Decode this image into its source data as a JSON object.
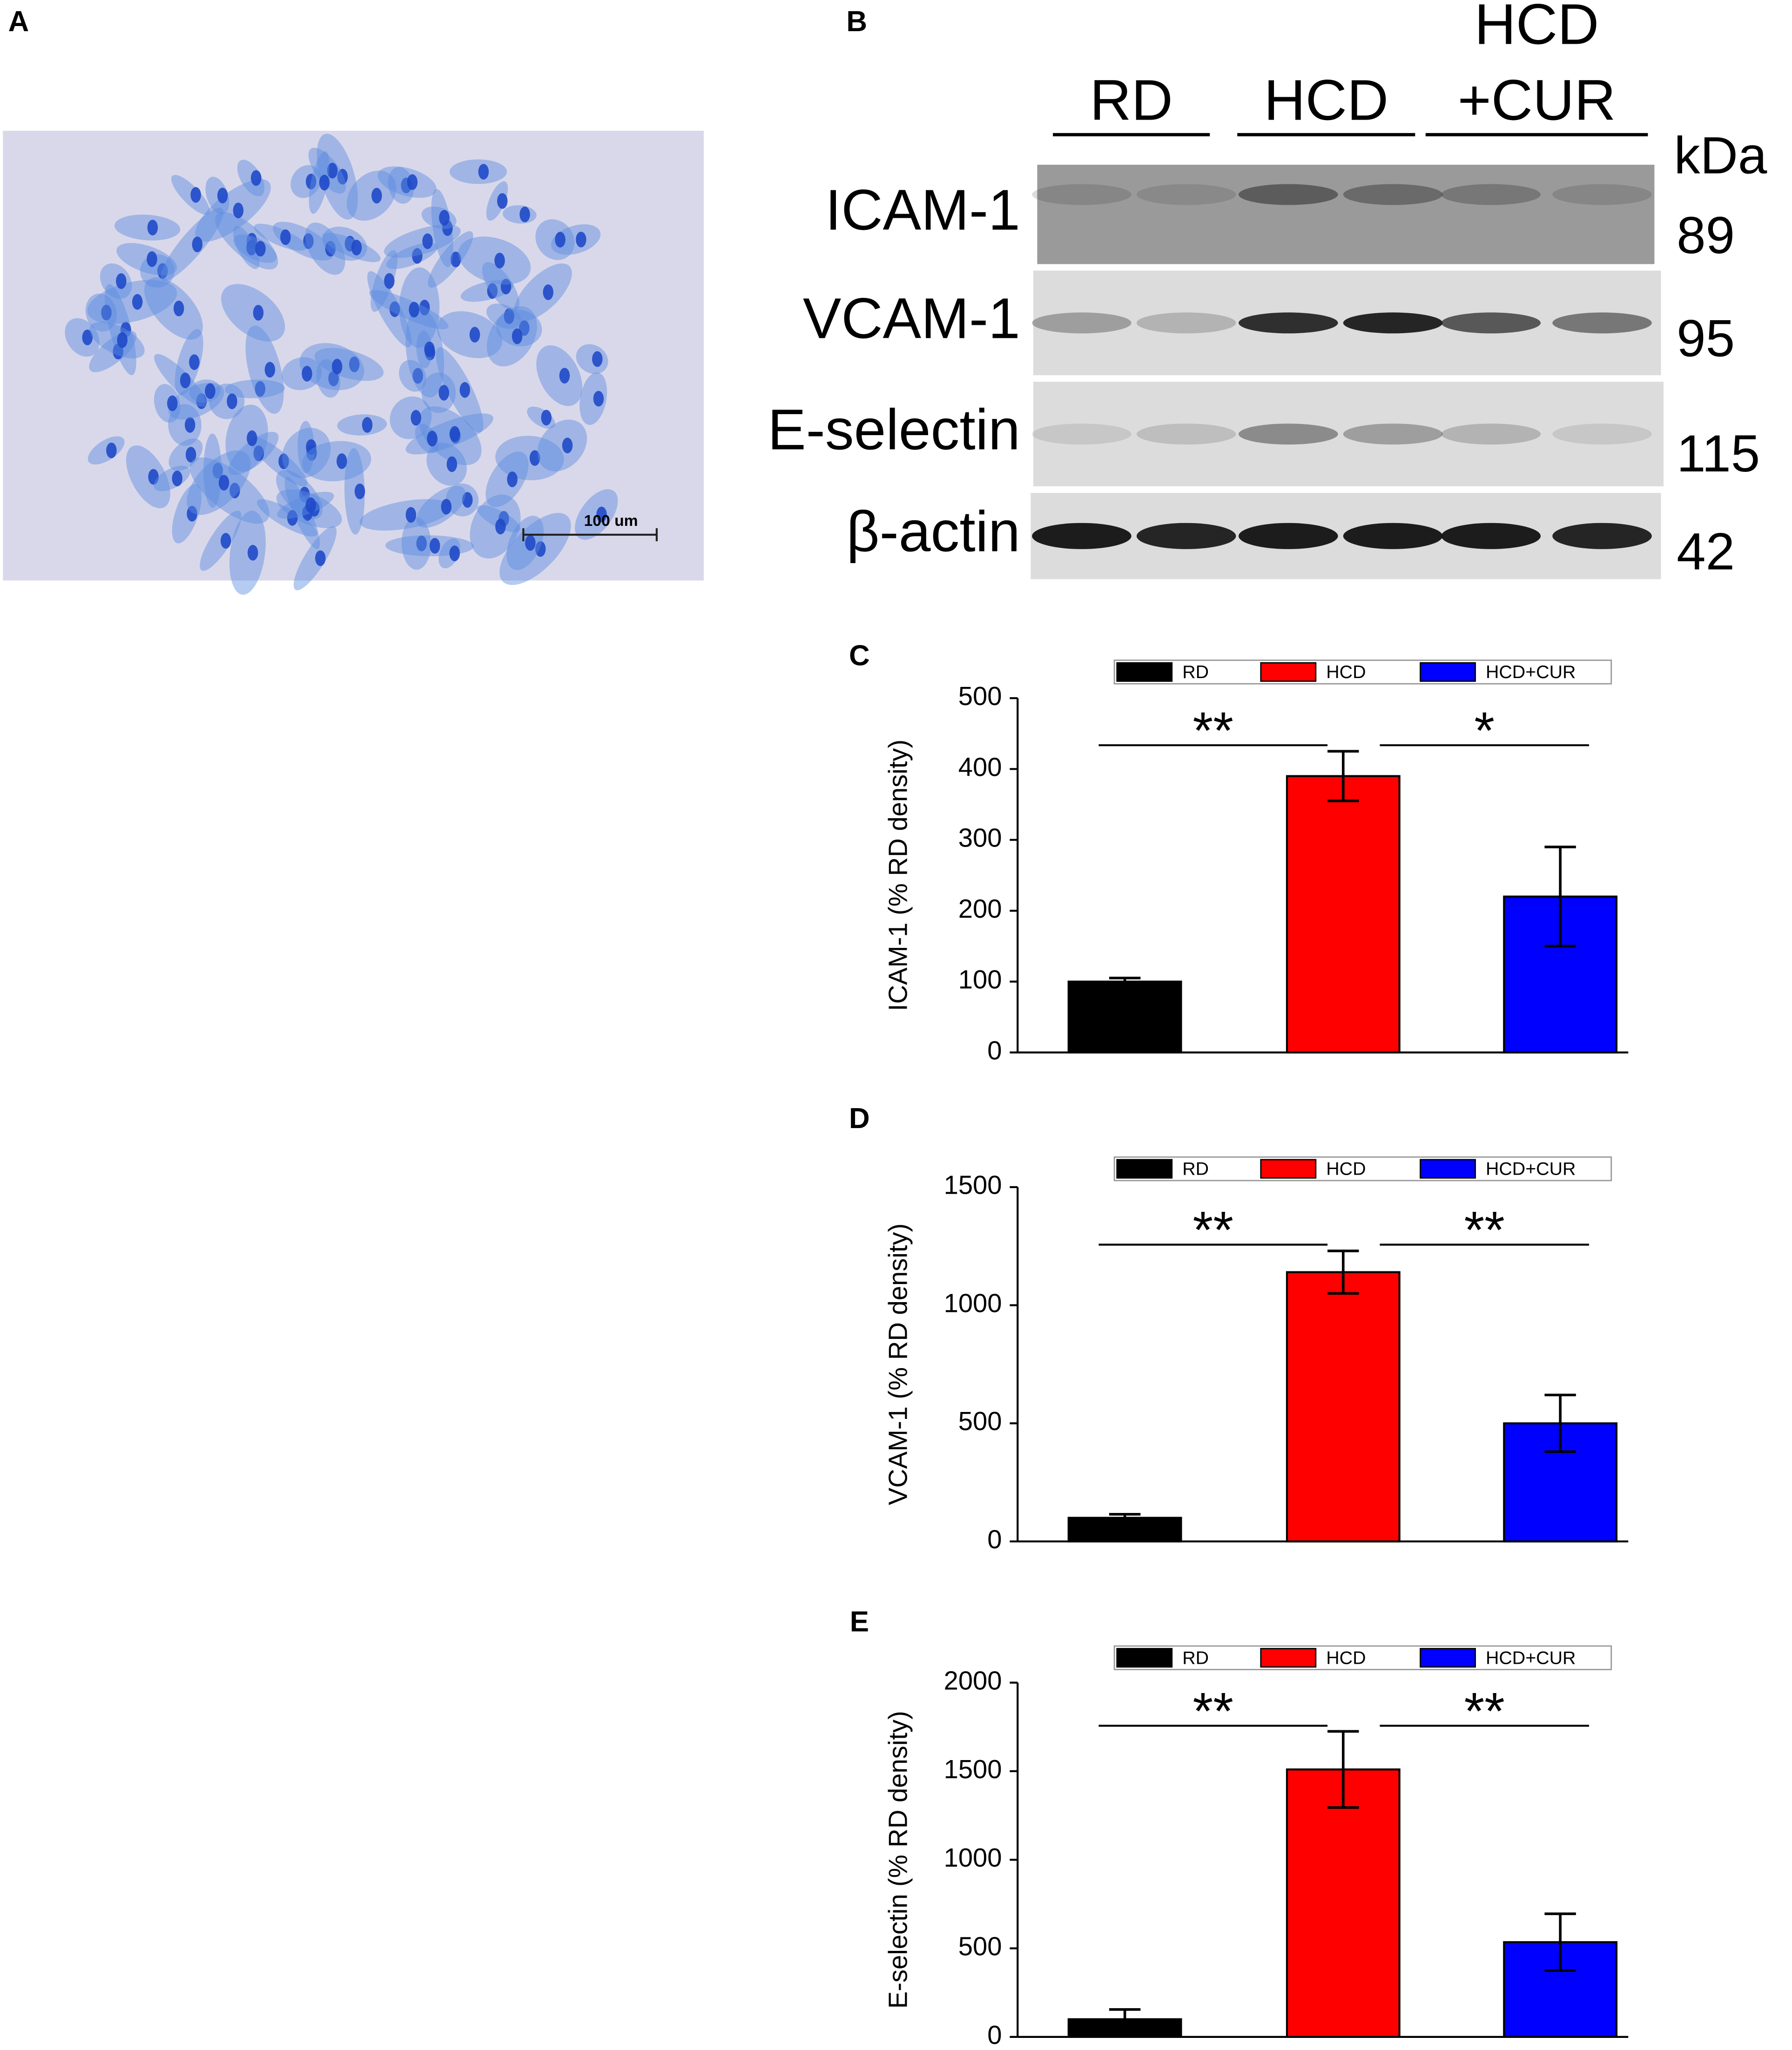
{
  "panel_a": {
    "label": "A",
    "scale_bar": "100 um"
  },
  "panel_b": {
    "label": "B",
    "groups": [
      [
        "RD"
      ],
      [
        "HCD"
      ],
      [
        "HCD",
        "+CUR"
      ]
    ],
    "unit": "kDa",
    "proteins": [
      "ICAM-1",
      "VCAM-1",
      "E-selectin",
      "β-actin"
    ],
    "sizes": [
      89,
      95,
      115,
      42
    ]
  },
  "chart_data": [
    {
      "type": "bar",
      "panel": "C",
      "ylabel": "ICAM-1 (% RD density)",
      "series": [
        {
          "name": "RD",
          "color": "#000000",
          "values": [
            100
          ],
          "errors": [
            5
          ]
        },
        {
          "name": "HCD",
          "color": "#ff0000",
          "values": [
            390
          ],
          "errors": [
            35
          ]
        },
        {
          "name": "HCD+CUR",
          "color": "#0000ff",
          "values": [
            220
          ],
          "errors": [
            70
          ]
        }
      ],
      "ylim": [
        0,
        500
      ],
      "yticks": [
        0,
        100,
        200,
        300,
        400,
        500
      ],
      "significance": [
        "**",
        "*"
      ]
    },
    {
      "type": "bar",
      "panel": "D",
      "ylabel": "VCAM-1 (% RD density)",
      "series": [
        {
          "name": "RD",
          "color": "#000000",
          "values": [
            100
          ],
          "errors": [
            15
          ]
        },
        {
          "name": "HCD",
          "color": "#ff0000",
          "values": [
            1140
          ],
          "errors": [
            90
          ]
        },
        {
          "name": "HCD+CUR",
          "color": "#0000ff",
          "values": [
            500
          ],
          "errors": [
            120
          ]
        }
      ],
      "ylim": [
        0,
        1500
      ],
      "yticks": [
        0,
        500,
        1000,
        1500
      ],
      "significance": [
        "**",
        "**"
      ]
    },
    {
      "type": "bar",
      "panel": "E",
      "ylabel": "E-selectin (% RD density)",
      "series": [
        {
          "name": "RD",
          "color": "#000000",
          "values": [
            100
          ],
          "errors": [
            55
          ]
        },
        {
          "name": "HCD",
          "color": "#ff0000",
          "values": [
            1510
          ],
          "errors": [
            215
          ]
        },
        {
          "name": "HCD+CUR",
          "color": "#0000ff",
          "values": [
            535
          ],
          "errors": [
            160
          ]
        }
      ],
      "ylim": [
        0,
        2000
      ],
      "yticks": [
        0,
        500,
        1000,
        1500,
        2000
      ],
      "significance": [
        "**",
        "**"
      ]
    }
  ]
}
